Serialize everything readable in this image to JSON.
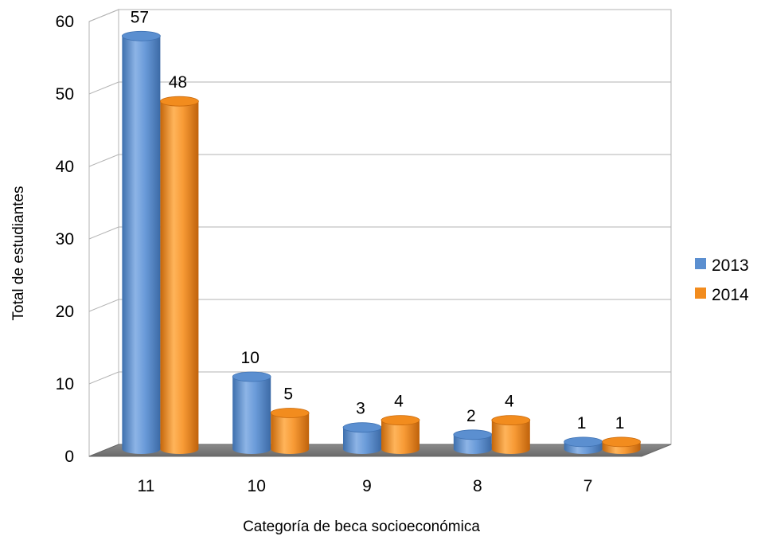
{
  "chart_data": {
    "type": "bar",
    "xlabel": "Categoría de beca socioeconómica",
    "ylabel": "Total de estudiantes",
    "categories": [
      "11",
      "10",
      "9",
      "8",
      "7"
    ],
    "series": [
      {
        "name": "2013",
        "values": [
          57,
          10,
          3,
          2,
          1
        ],
        "color": "#5b8fd0"
      },
      {
        "name": "2014",
        "values": [
          48,
          5,
          4,
          4,
          1
        ],
        "color": "#f28c1e"
      }
    ],
    "ylim": [
      0,
      60
    ],
    "yticks": [
      0,
      10,
      20,
      30,
      40,
      50,
      60
    ],
    "grid": true,
    "legend_position": "right",
    "style": "3d-cylinder"
  }
}
